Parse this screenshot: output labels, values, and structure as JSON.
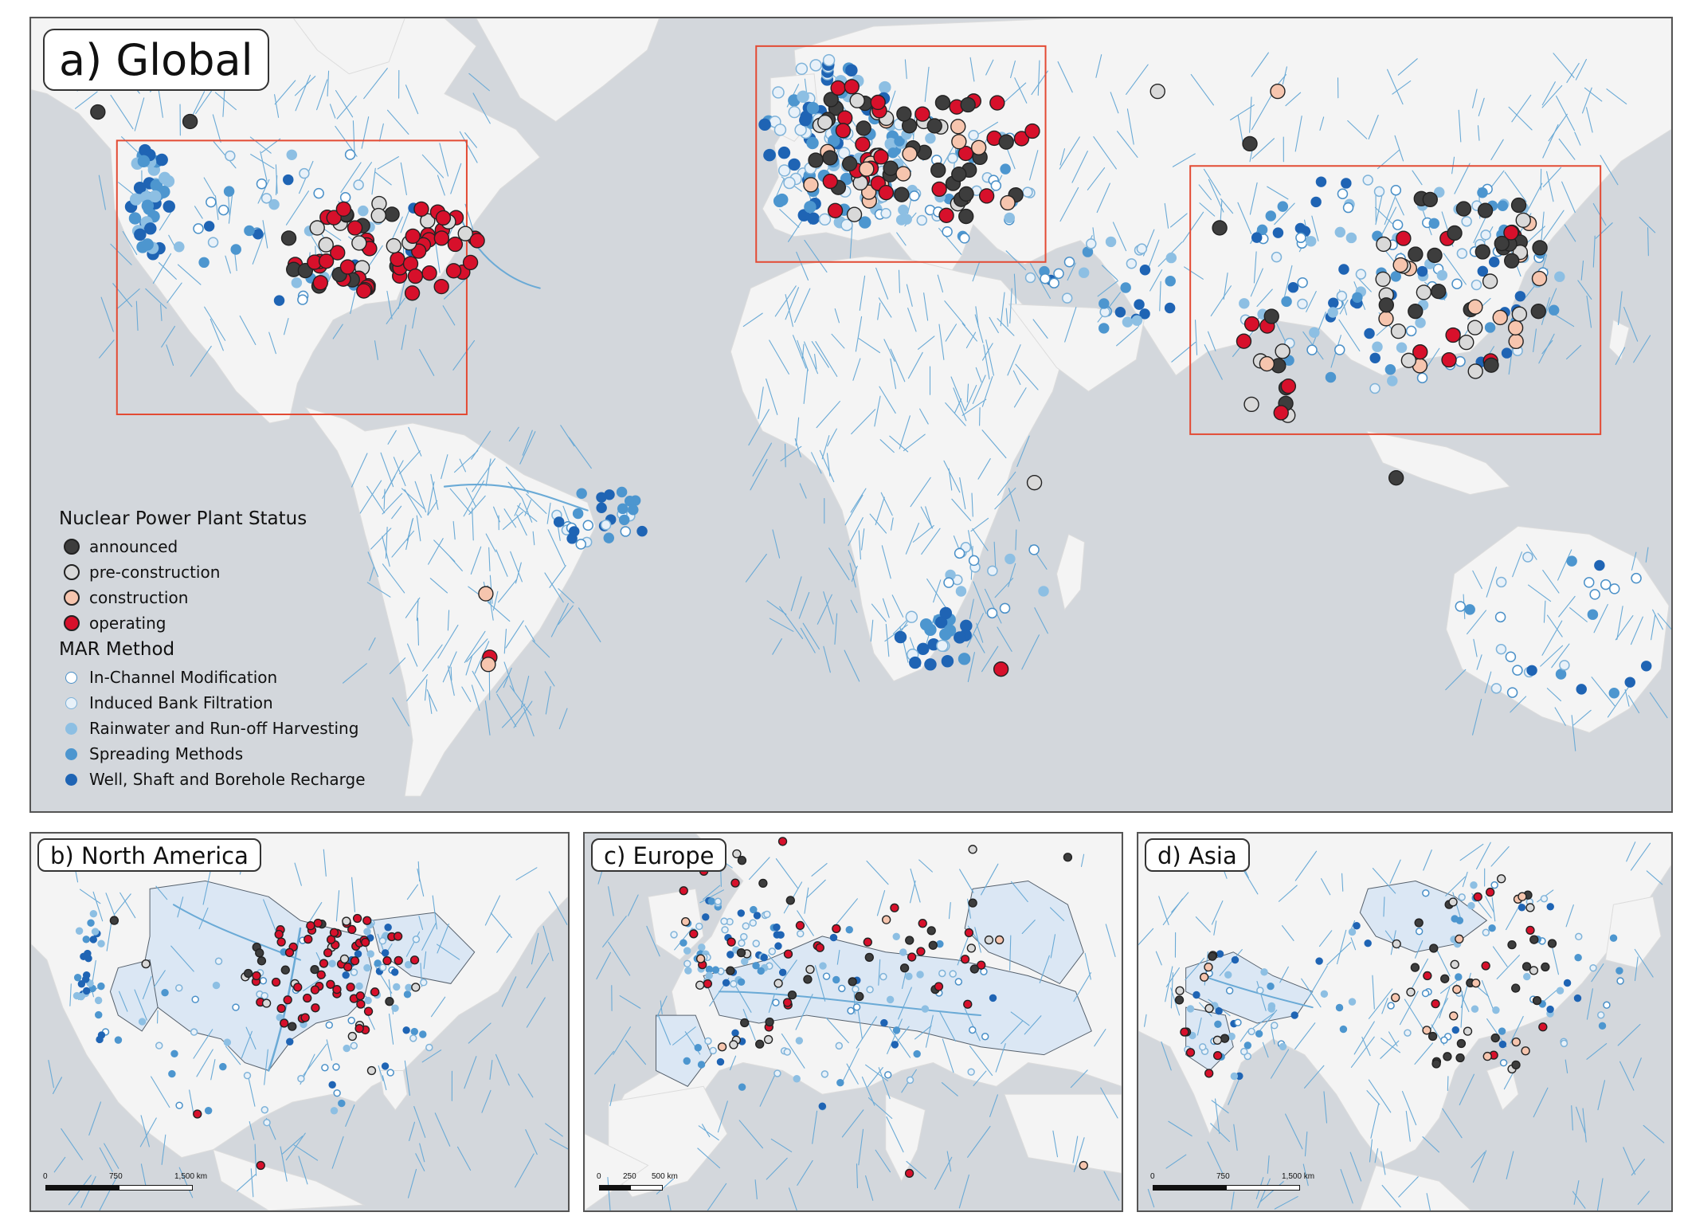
{
  "panels": {
    "global": {
      "title": "a) Global"
    },
    "north_america": {
      "title": "b) North America",
      "scale": [
        "0",
        "750",
        "1,500 km"
      ]
    },
    "europe": {
      "title": "c) Europe",
      "scale": [
        "0",
        "250",
        "500 km"
      ]
    },
    "asia": {
      "title": "d) Asia",
      "scale": [
        "0",
        "750",
        "1,500 km"
      ]
    }
  },
  "legend": {
    "npp_heading": "Nuclear Power Plant Status",
    "npp_items": [
      {
        "label": "announced",
        "color": "#3d3d3d"
      },
      {
        "label": "pre-construction",
        "color": "#d9d9d9"
      },
      {
        "label": "construction",
        "color": "#f6c5ae"
      },
      {
        "label": "operating",
        "color": "#d7102b"
      }
    ],
    "mar_heading": "MAR Method",
    "mar_items": [
      {
        "label": "In-Channel Modification",
        "color": "#ffffff",
        "stroke": "#4a90c8"
      },
      {
        "label": "Induced Bank Filtration",
        "color": "#e8f1f9",
        "stroke": "#7fb3d9"
      },
      {
        "label": "Rainwater and Run-off Harvesting",
        "color": "#8dbfe3",
        "stroke": "#8dbfe3"
      },
      {
        "label": "Spreading Methods",
        "color": "#4d96cf",
        "stroke": "#4d96cf"
      },
      {
        "label": "Well, Shaft and Borehole Recharge",
        "color": "#1f64b4",
        "stroke": "#1f64b4"
      }
    ]
  },
  "colors": {
    "ocean": "#d3d7dc",
    "land": "#f4f4f4",
    "river": "#6aaad6",
    "basin": "#dbe7f4",
    "box": "#e34a33"
  }
}
